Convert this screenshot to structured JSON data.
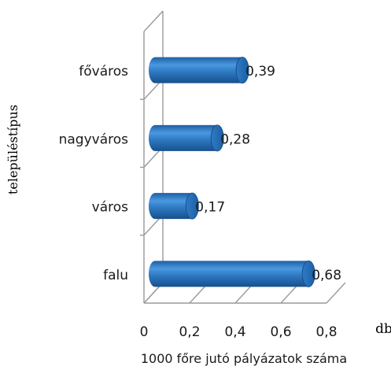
{
  "chart_data": {
    "type": "bar",
    "orientation": "horizontal",
    "style": "3d-cylinder",
    "categories": [
      "főváros",
      "nagyváros",
      "város",
      "falu"
    ],
    "values": [
      0.39,
      0.28,
      0.17,
      0.68
    ],
    "value_labels": [
      "0,39",
      "0,28",
      "0,17",
      "0,68"
    ],
    "xticks": [
      "0",
      "0,2",
      "0,4",
      "0,6",
      "0,8"
    ],
    "xlim": [
      0,
      0.8
    ],
    "xlabel": "1000 főre jutó pályázatok száma",
    "ylabel": "településtípus",
    "unit": "db",
    "grid": false,
    "bar_color": "#2f7bc4"
  }
}
